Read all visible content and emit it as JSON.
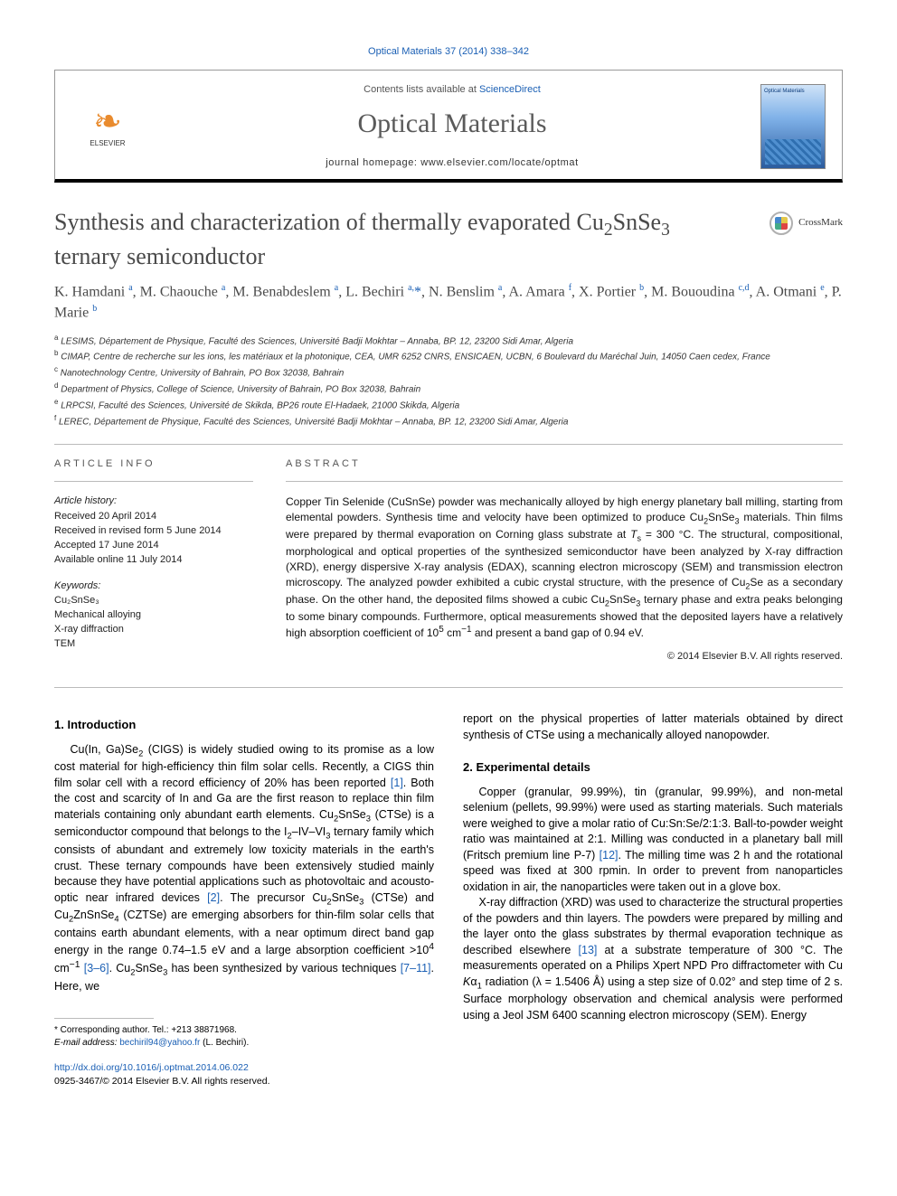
{
  "citation_line": "Optical Materials 37 (2014) 338–342",
  "masthead": {
    "contents_line_prefix": "Contents lists available at ",
    "contents_link_text": "ScienceDirect",
    "journal_title": "Optical Materials",
    "homepage_line": "journal homepage: www.elsevier.com/locate/optmat",
    "publisher_name": "ELSEVIER",
    "cover_label": "Optical Materials"
  },
  "crossmark_label": "CrossMark",
  "article": {
    "title_html": "Synthesis and characterization of thermally evaporated Cu<sub>2</sub>SnSe<sub>3</sub> ternary semiconductor",
    "authors_html": "K. Hamdani <sup>a</sup>, M. Chaouche <sup>a</sup>, M. Benabdeslem <sup>a</sup>, L. Bechiri <sup>a,</sup><span class='star'>*</span>, N. Benslim <sup>a</sup>, A. Amara <sup>f</sup>, X. Portier <sup>b</sup>, M. Bououdina <sup>c,d</sup>, A. Otmani <sup>e</sup>, P. Marie <sup>b</sup>",
    "affiliations": [
      "a LESIMS, Département de Physique, Faculté des Sciences, Université Badji Mokhtar – Annaba, BP. 12, 23200 Sidi Amar, Algeria",
      "b CIMAP, Centre de recherche sur les ions, les matériaux et la photonique, CEA, UMR 6252 CNRS, ENSICAEN, UCBN, 6 Boulevard du Maréchal Juin, 14050 Caen cedex, France",
      "c Nanotechnology Centre, University of Bahrain, PO Box 32038, Bahrain",
      "d Department of Physics, College of Science, University of Bahrain, PO Box 32038, Bahrain",
      "e LRPCSI, Faculté des Sciences, Université de Skikda, BP26 route El-Hadaek, 21000 Skikda, Algeria",
      "f LEREC, Département de Physique, Faculté des Sciences, Université Badji Mokhtar – Annaba, BP. 12, 23200 Sidi Amar, Algeria"
    ]
  },
  "article_info": {
    "label": "article info",
    "history_label": "Article history:",
    "history": [
      "Received 20 April 2014",
      "Received in revised form 5 June 2014",
      "Accepted 17 June 2014",
      "Available online 11 July 2014"
    ],
    "keywords_label": "Keywords:",
    "keywords": [
      "Cu₂SnSe₃",
      "Mechanical alloying",
      "X-ray diffraction",
      "TEM"
    ]
  },
  "abstract": {
    "label": "abstract",
    "text_html": "Copper Tin Selenide (CuSnSe) powder was mechanically alloyed by high energy planetary ball milling, starting from elemental powders. Synthesis time and velocity have been optimized to produce Cu<sub>2</sub>SnSe<sub>3</sub> materials. Thin films were prepared by thermal evaporation on Corning glass substrate at <i>T</i><sub>s</sub> = 300 °C. The structural, compositional, morphological and optical properties of the synthesized semiconductor have been analyzed by X-ray diffraction (XRD), energy dispersive X-ray analysis (EDAX), scanning electron microscopy (SEM) and transmission electron microscopy. The analyzed powder exhibited a cubic crystal structure, with the presence of Cu<sub>2</sub>Se as a secondary phase. On the other hand, the deposited films showed a cubic Cu<sub>2</sub>SnSe<sub>3</sub> ternary phase and extra peaks belonging to some binary compounds. Furthermore, optical measurements showed that the deposited layers have a relatively high absorption coefficient of 10<sup>5</sup> cm<sup>−1</sup> and present a band gap of 0.94 eV.",
    "copyright": "© 2014 Elsevier B.V. All rights reserved."
  },
  "sections": {
    "intro_heading": "1. Introduction",
    "intro_html": "<p>Cu(In, Ga)Se<sub>2</sub> (CIGS) is widely studied owing to its promise as a low cost material for high-efficiency thin film solar cells. Recently, a CIGS thin film solar cell with a record efficiency of 20% has been reported <span class='ref'>[1]</span>. Both the cost and scarcity of In and Ga are the first reason to replace thin film materials containing only abundant earth elements. Cu<sub>2</sub>SnSe<sub>3</sub> (CTSe) is a semiconductor compound that belongs to the I<sub>2</sub>–IV–VI<sub>3</sub> ternary family which consists of abundant and extremely low toxicity materials in the earth's crust. These ternary compounds have been extensively studied mainly because they have potential applications such as photovoltaic and acousto-optic near infrared devices <span class='ref'>[2]</span>. The precursor Cu<sub>2</sub>SnSe<sub>3</sub> (CTSe) and Cu<sub>2</sub>ZnSnSe<sub>4</sub> (CZTSe) are emerging absorbers for thin-film solar cells that contains earth abundant elements, with a near optimum direct band gap energy in the range 0.74–1.5 eV and a large absorption coefficient &gt;10<sup>4</sup> cm<sup>−1</sup> <span class='ref'>[3–6]</span>. Cu<sub>2</sub>SnSe<sub>3</sub> has been synthesized by various techniques <span class='ref'>[7–11]</span>. Here, we</p>",
    "intro_cont_html": "report on the physical properties of latter materials obtained by direct synthesis of CTSe using a mechanically alloyed nanopowder.",
    "exp_heading": "2. Experimental details",
    "exp_html": "<p>Copper (granular, 99.99%), tin (granular, 99.99%), and non-metal selenium (pellets, 99.99%) were used as starting materials. Such materials were weighed to give a molar ratio of Cu:Sn:Se/2:1:3. Ball-to-powder weight ratio was maintained at 2:1. Milling was conducted in a planetary ball mill (Fritsch premium line P-7) <span class='ref'>[12]</span>. The milling time was 2 h and the rotational speed was fixed at 300 rpmin. In order to prevent from nanoparticles oxidation in air, the nanoparticles were taken out in a glove box.</p><p>X-ray diffraction (XRD) was used to characterize the structural properties of the powders and thin layers. The powders were prepared by milling and the layer onto the glass substrates by thermal evaporation technique as described elsewhere <span class='ref'>[13]</span> at a substrate temperature of 300 °C. The measurements operated on a Philips Xpert NPD Pro diffractometer with Cu <i>K</i>α<sub>1</sub> radiation (λ = 1.5406 Å) using a step size of 0.02° and step time of 2 s. Surface morphology observation and chemical analysis were performed using a Jeol JSM 6400 scanning electron microscopy (SEM). Energy</p>"
  },
  "footnote": {
    "corresponding_label": "* Corresponding author. Tel.: +213 38871968.",
    "email_label": "E-mail address:",
    "email": "bechiril94@yahoo.fr",
    "email_name": "(L. Bechiri)."
  },
  "doi": {
    "url": "http://dx.doi.org/10.1016/j.optmat.2014.06.022",
    "issn_line": "0925-3467/© 2014 Elsevier B.V. All rights reserved."
  },
  "colors": {
    "link": "#1a5fb4",
    "title_gray": "#4a4a4a",
    "rule": "#bbbbbb",
    "elsevier_orange": "#e98b2e"
  }
}
